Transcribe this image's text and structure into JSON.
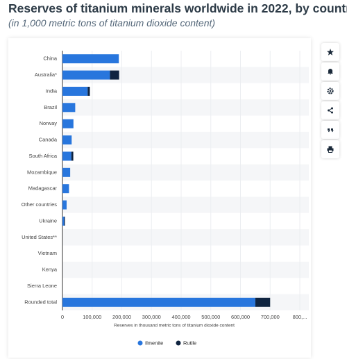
{
  "chart_data": {
    "type": "bar",
    "orientation": "horizontal",
    "stacked": true,
    "title": "Reserves of titanium minerals worldwide in 2022, by country",
    "subtitle": "(in 1,000 metric tons of titanium dioxide content)",
    "x_label": "Reserves in thousand metric tons of titanium dioxide content",
    "categories": [
      "China",
      "Australia*",
      "India",
      "Brazil",
      "Norway",
      "Canada",
      "South Africa",
      "Mozambique",
      "Madagascar",
      "Other countries",
      "Ukraine",
      "United States**",
      "Vietnam",
      "Kenya",
      "Sierra Leone",
      "Rounded total"
    ],
    "series": [
      {
        "name": "Ilmenite",
        "color": "#2876dd",
        "values": [
          190000,
          160000,
          85000,
          43000,
          37000,
          31000,
          30000,
          26000,
          22000,
          14000,
          5900,
          0,
          0,
          0,
          0,
          650000
        ]
      },
      {
        "name": "Rutile",
        "color": "#0f2440",
        "values": [
          0,
          31000,
          7400,
          0,
          0,
          0,
          6500,
          0,
          0,
          0,
          2500,
          0,
          0,
          0,
          0,
          50000
        ]
      }
    ],
    "xlim": [
      0,
      800000
    ],
    "xticks": [
      0,
      {
        "value": 100000,
        "label": "100,000"
      },
      {
        "value": 200000,
        "label": "200,000"
      },
      {
        "value": 300000,
        "label": "300,000"
      },
      {
        "value": 400000,
        "label": "400,000"
      },
      {
        "value": 500000,
        "label": "500,000"
      },
      {
        "value": 600000,
        "label": "600,000"
      },
      {
        "value": 700000,
        "label": "700,000"
      },
      {
        "value": 800000,
        "label": "800,..."
      }
    ],
    "grid": true,
    "legend": "bottom"
  }
}
